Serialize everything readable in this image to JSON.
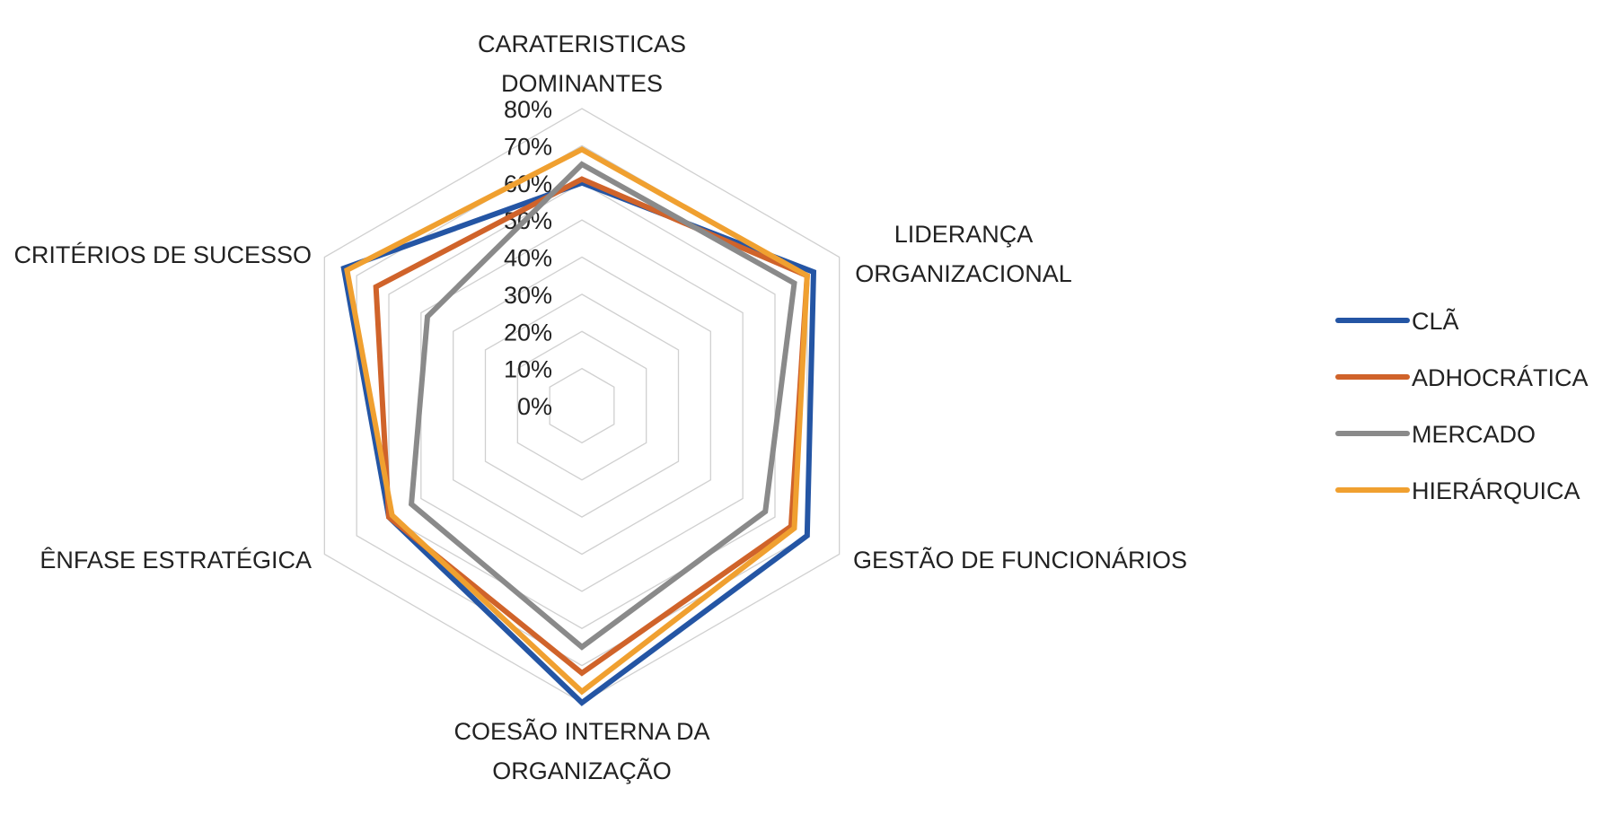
{
  "chart_data": {
    "type": "radar",
    "title": "",
    "categories": [
      [
        "CARATERISTICAS",
        "DOMINANTES"
      ],
      [
        "LIDERANÇA",
        "ORGANIZACIONAL"
      ],
      [
        "GESTÃO DE FUNCIONÁRIOS"
      ],
      [
        "COESÃO INTERNA DA",
        "ORGANIZAÇÃO"
      ],
      [
        "ÊNFASE ESTRATÉGICA"
      ],
      [
        "CRITÉRIOS DE SUCESSO"
      ]
    ],
    "r_ticks": [
      "0%",
      "10%",
      "20%",
      "30%",
      "40%",
      "50%",
      "60%",
      "70%",
      "80%"
    ],
    "r_range": [
      0,
      80
    ],
    "grid": true,
    "legend_position": "right",
    "series": [
      {
        "name": "CLÃ",
        "color": "#2455a4",
        "values": [
          60,
          72,
          70,
          80,
          60,
          74
        ]
      },
      {
        "name": "ADHOCRÁTICA",
        "color": "#d0632a",
        "values": [
          61,
          70,
          65,
          72,
          60,
          64
        ]
      },
      {
        "name": "MERCADO",
        "color": "#8a8a8a",
        "values": [
          65,
          66,
          57,
          65,
          53,
          48
        ]
      },
      {
        "name": "HIERÁRQUICA",
        "color": "#f0a030",
        "values": [
          69,
          70,
          66,
          77,
          59,
          73
        ]
      }
    ]
  }
}
